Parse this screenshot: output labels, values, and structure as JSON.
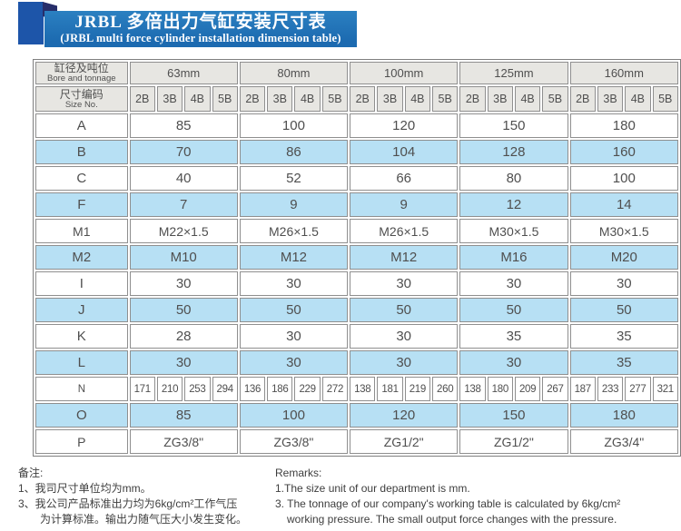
{
  "banner": {
    "title_cn": "JRBL 多倍出力气缸安装尺寸表",
    "title_en": "(JRBL multi force cylinder installation dimension table)"
  },
  "table": {
    "corner_cn": "缸径及吨位",
    "corner_en": "Bore and tonnage",
    "size_no_cn": "尺寸编码",
    "size_no_en": "Size No.",
    "sizes": [
      "63mm",
      "80mm",
      "100mm",
      "125mm",
      "160mm"
    ],
    "sub_headers": [
      "2B",
      "3B",
      "4B",
      "5B"
    ],
    "rows": [
      {
        "label": "A",
        "values": [
          "85",
          "100",
          "120",
          "150",
          "180"
        ]
      },
      {
        "label": "B",
        "values": [
          "70",
          "86",
          "104",
          "128",
          "160"
        ]
      },
      {
        "label": "C",
        "values": [
          "40",
          "52",
          "66",
          "80",
          "100"
        ]
      },
      {
        "label": "F",
        "values": [
          "7",
          "9",
          "9",
          "12",
          "14"
        ]
      },
      {
        "label": "M1",
        "values": [
          "M22×1.5",
          "M26×1.5",
          "M26×1.5",
          "M30×1.5",
          "M30×1.5"
        ]
      },
      {
        "label": "M2",
        "values": [
          "M10",
          "M12",
          "M12",
          "M16",
          "M20"
        ]
      },
      {
        "label": "I",
        "values": [
          "30",
          "30",
          "30",
          "30",
          "30"
        ]
      },
      {
        "label": "J",
        "values": [
          "50",
          "50",
          "50",
          "50",
          "50"
        ]
      },
      {
        "label": "K",
        "values": [
          "28",
          "30",
          "30",
          "35",
          "35"
        ]
      },
      {
        "label": "L",
        "values": [
          "30",
          "30",
          "30",
          "30",
          "35"
        ]
      },
      {
        "label": "N",
        "values": [
          "171",
          "210",
          "253",
          "294",
          "136",
          "186",
          "229",
          "272",
          "138",
          "181",
          "219",
          "260",
          "138",
          "180",
          "209",
          "267",
          "187",
          "233",
          "277",
          "321"
        ]
      },
      {
        "label": "O",
        "values": [
          "85",
          "100",
          "120",
          "150",
          "180"
        ]
      },
      {
        "label": "P",
        "values": [
          "ZG3/8\"",
          "ZG3/8\"",
          "ZG1/2\"",
          "ZG1/2\"",
          "ZG3/4\""
        ]
      }
    ]
  },
  "notes_cn": {
    "title": "备注:",
    "lines": [
      "1、我司尺寸单位均为mm。",
      "3、我公司产品标准出力均为6kg/cm²工作气压",
      "为计算标准。输出力随气压大小发生变化。"
    ]
  },
  "notes_en": {
    "title": "Remarks:",
    "lines": [
      "1.The size unit of our department is mm.",
      "3. The tonnage of our company's working table is calculated by 6kg/cm²",
      "working pressure. The small output force changes with the pressure."
    ]
  },
  "colors": {
    "banner_blue": "#1c6ab0",
    "square_blue": "#1d55a9",
    "fold_navy": "#272e6a",
    "row_blue": "#b7e0f4",
    "header_gray": "#e7e6e2",
    "border_gray": "#8f8f8f"
  }
}
